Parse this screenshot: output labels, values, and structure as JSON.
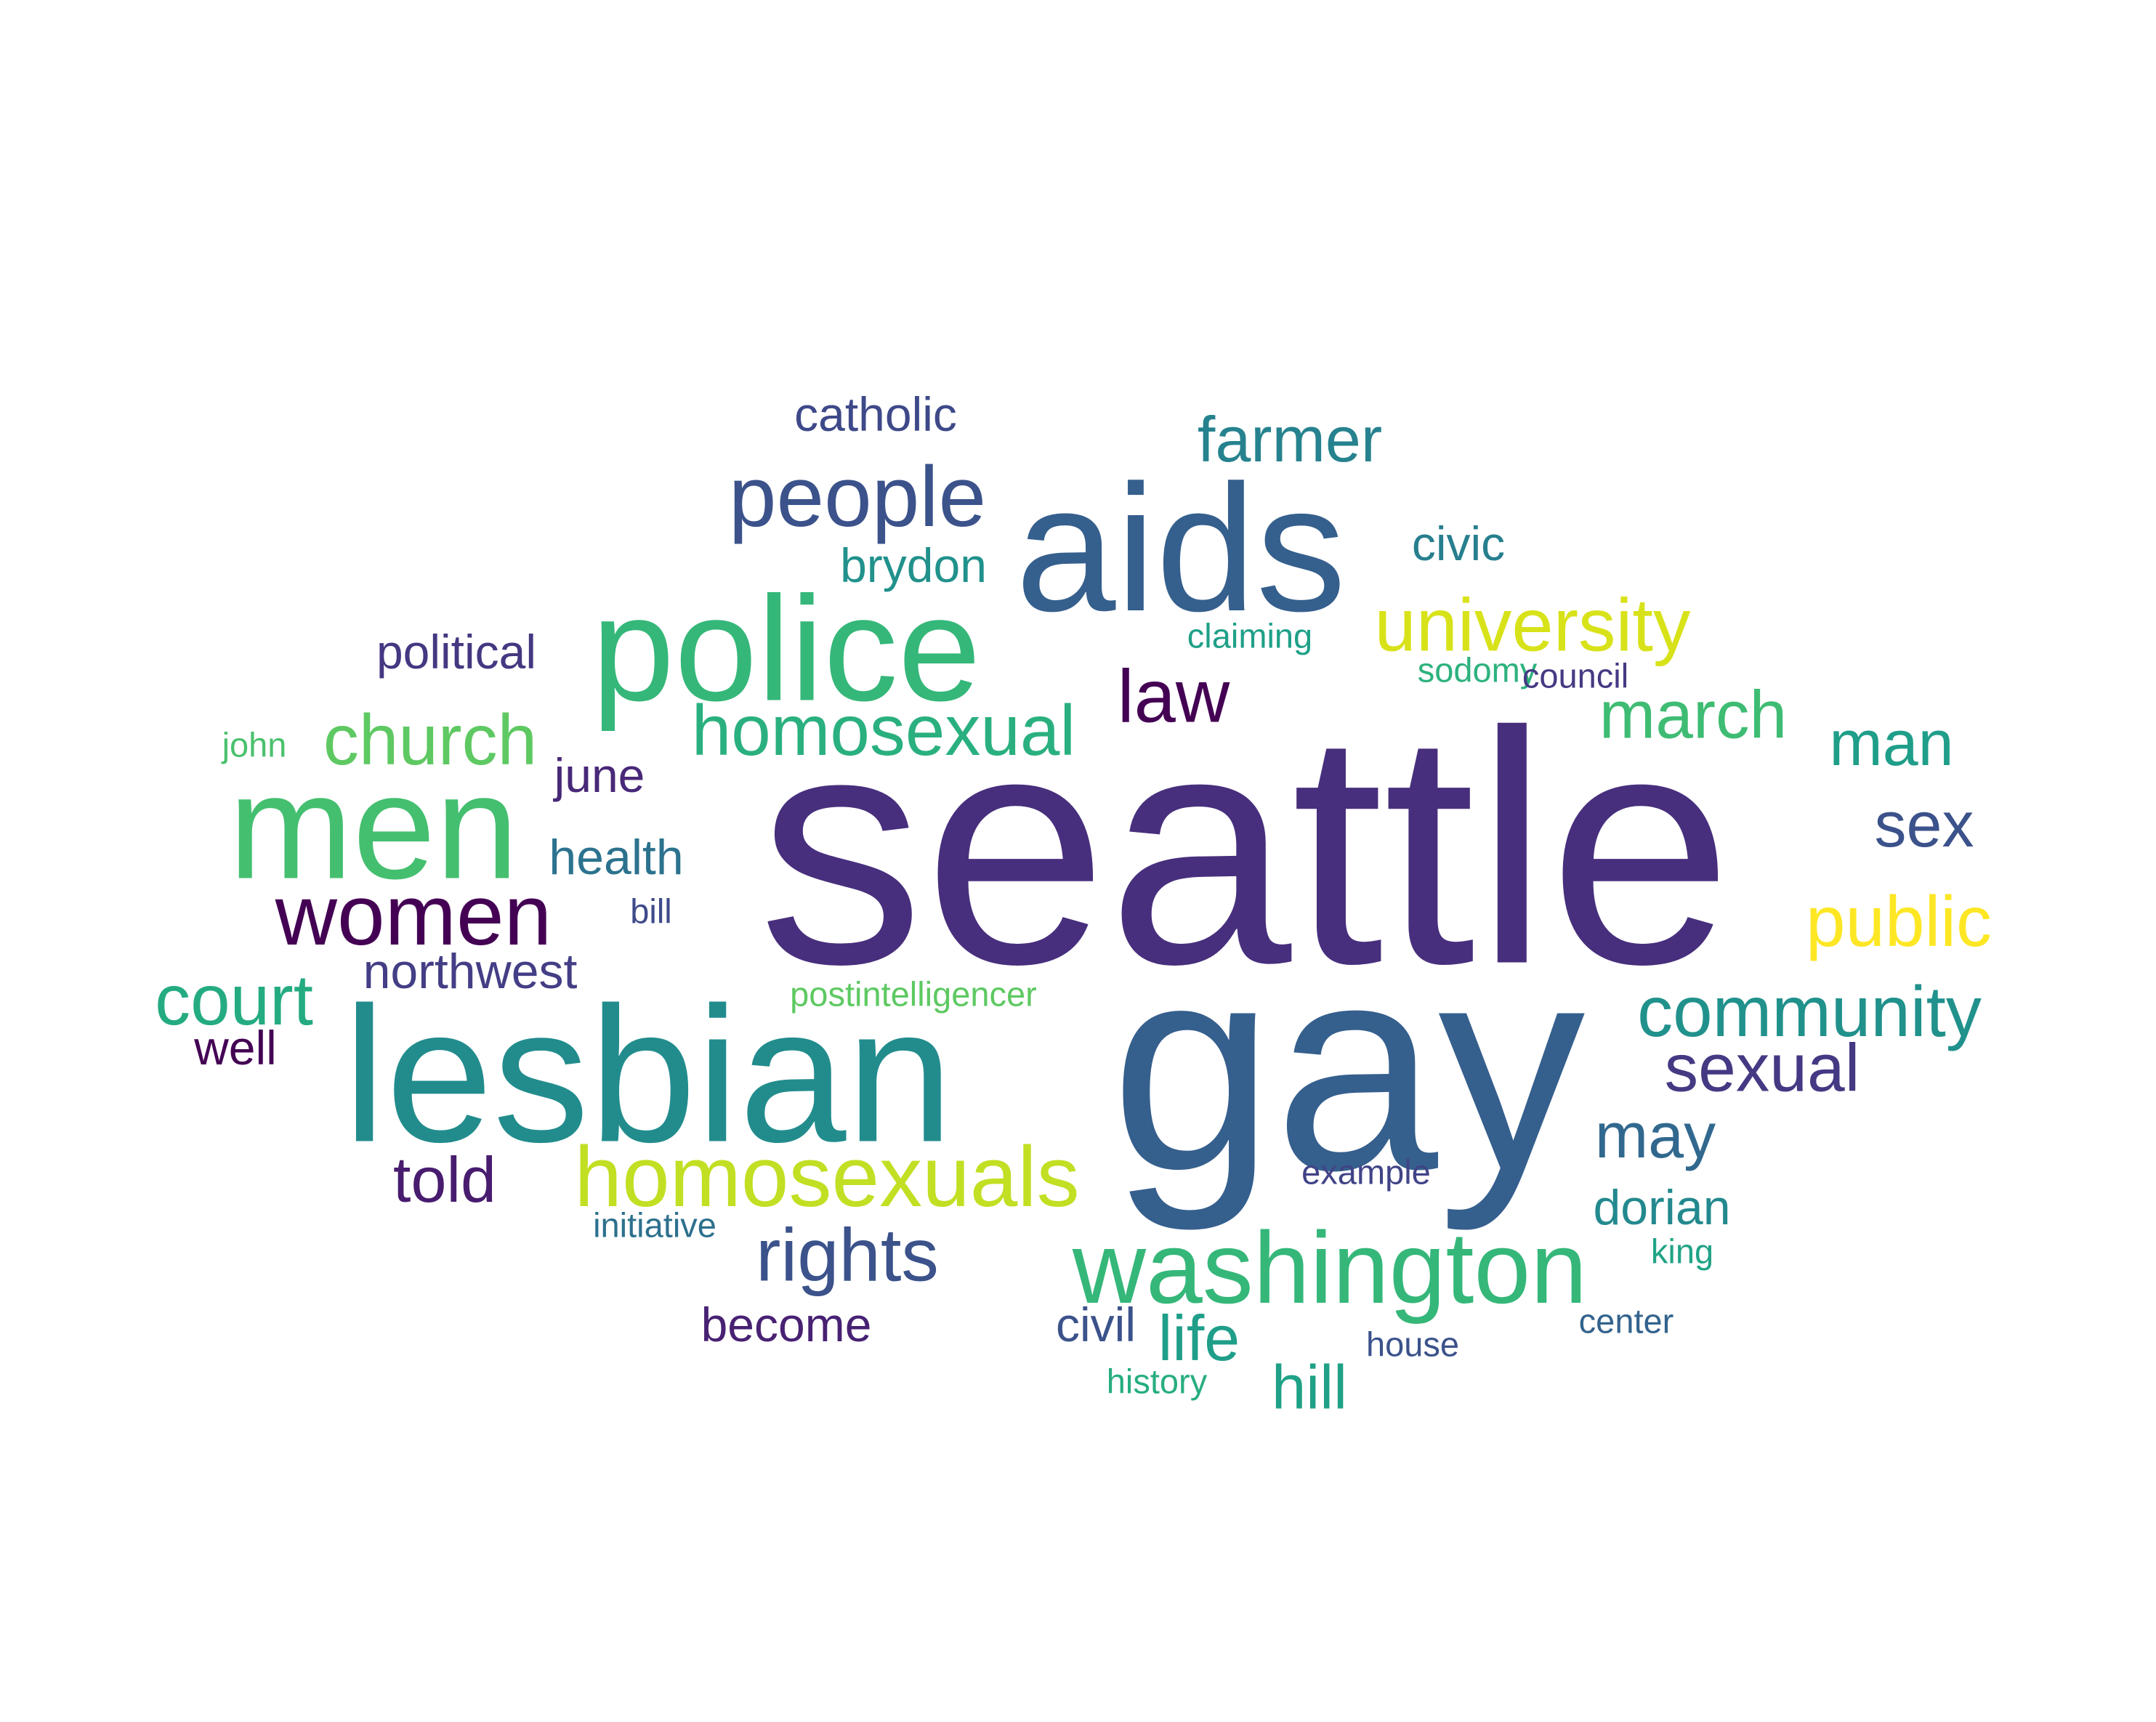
{
  "words": [
    {
      "text": "seattle",
      "color": "#472f7d"
    },
    {
      "text": "gay",
      "color": "#355f8d"
    },
    {
      "text": "lesbian",
      "color": "#228c8d"
    },
    {
      "text": "aids",
      "color": "#355f8d"
    },
    {
      "text": "police",
      "color": "#35b779"
    },
    {
      "text": "men",
      "color": "#44bf70"
    },
    {
      "text": "washington",
      "color": "#35b779"
    },
    {
      "text": "homosexuals",
      "color": "#c2df23"
    },
    {
      "text": "people",
      "color": "#3b528b"
    },
    {
      "text": "women",
      "color": "#440154"
    },
    {
      "text": "university",
      "color": "#d8e219"
    },
    {
      "text": "rights",
      "color": "#3b528b"
    },
    {
      "text": "community",
      "color": "#21918c"
    },
    {
      "text": "homosexual",
      "color": "#2ab07f"
    },
    {
      "text": "church",
      "color": "#5ec962"
    },
    {
      "text": "law",
      "color": "#440154"
    },
    {
      "text": "court",
      "color": "#25ab82"
    },
    {
      "text": "public",
      "color": "#fde725"
    },
    {
      "text": "march",
      "color": "#3fbc73"
    },
    {
      "text": "sexual",
      "color": "#443983"
    },
    {
      "text": "farmer",
      "color": "#26828e"
    },
    {
      "text": "man",
      "color": "#1f9e89"
    },
    {
      "text": "may",
      "color": "#31688e"
    },
    {
      "text": "told",
      "color": "#481c6e"
    },
    {
      "text": "life",
      "color": "#1f9e89"
    },
    {
      "text": "sex",
      "color": "#3b528b"
    },
    {
      "text": "hill",
      "color": "#1fa187"
    },
    {
      "text": "northwest",
      "color": "#433e85"
    },
    {
      "text": "dorian",
      "color": "#23898e"
    },
    {
      "text": "health",
      "color": "#2c728e"
    },
    {
      "text": "catholic",
      "color": "#3e4989"
    },
    {
      "text": "political",
      "color": "#453781"
    },
    {
      "text": "brydon",
      "color": "#21918c"
    },
    {
      "text": "june",
      "color": "#482878"
    },
    {
      "text": "become",
      "color": "#482173"
    },
    {
      "text": "civic",
      "color": "#277f8e"
    },
    {
      "text": "civil",
      "color": "#3b528b"
    },
    {
      "text": "well",
      "color": "#440154"
    },
    {
      "text": "postintelligencer",
      "color": "#5ec962"
    },
    {
      "text": "claiming",
      "color": "#1fa088"
    },
    {
      "text": "sodomy",
      "color": "#2db27d"
    },
    {
      "text": "council",
      "color": "#443a83"
    },
    {
      "text": "john",
      "color": "#4ac16d"
    },
    {
      "text": "initiative",
      "color": "#2d708e"
    },
    {
      "text": "example",
      "color": "#414487"
    },
    {
      "text": "king",
      "color": "#20a386"
    },
    {
      "text": "center",
      "color": "#33638d"
    },
    {
      "text": "house",
      "color": "#3b528b"
    },
    {
      "text": "history",
      "color": "#27ad81"
    },
    {
      "text": "bill",
      "color": "#3e4a89"
    }
  ]
}
